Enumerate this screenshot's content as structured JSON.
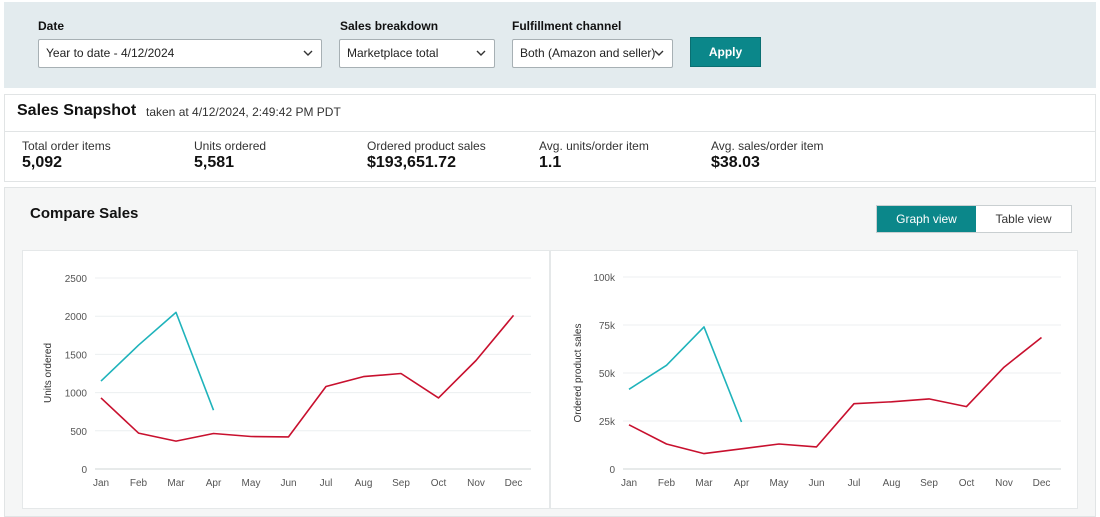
{
  "filters": {
    "date_label": "Date",
    "date_value": "Year to date - 4/12/2024",
    "breakdown_label": "Sales breakdown",
    "breakdown_value": "Marketplace total",
    "channel_label": "Fulfillment channel",
    "channel_value": "Both (Amazon and seller)",
    "apply_label": "Apply"
  },
  "snapshot": {
    "title": "Sales Snapshot",
    "taken_at": "taken at 4/12/2024, 2:49:42 PM PDT",
    "metrics": [
      {
        "label": "Total order items",
        "value": "5,092"
      },
      {
        "label": "Units ordered",
        "value": "5,581"
      },
      {
        "label": "Ordered product sales",
        "value": "$193,651.72"
      },
      {
        "label": "Avg. units/order item",
        "value": "1.1"
      },
      {
        "label": "Avg. sales/order item",
        "value": "$38.03"
      }
    ]
  },
  "compare": {
    "title": "Compare Sales",
    "graph_view_label": "Graph view",
    "table_view_label": "Table view"
  },
  "colors": {
    "accent": "#0b878a",
    "current_year": "#1fb3bb",
    "last_year": "#c8102e"
  },
  "chart_data": [
    {
      "type": "line",
      "ylabel": "Units ordered",
      "categories": [
        "Jan",
        "Feb",
        "Mar",
        "Apr",
        "May",
        "Jun",
        "Jul",
        "Aug",
        "Sep",
        "Oct",
        "Nov",
        "Dec"
      ],
      "yticks": [
        "0",
        "500",
        "1000",
        "1500",
        "2000",
        "2500"
      ],
      "ylim": [
        0,
        2500
      ],
      "grid": true,
      "series": [
        {
          "values": [
            1150,
            1620,
            2050,
            770,
            null,
            null,
            null,
            null,
            null,
            null,
            null,
            null
          ]
        },
        {
          "values": [
            930,
            470,
            365,
            465,
            425,
            420,
            1080,
            1210,
            1250,
            930,
            1420,
            2010
          ]
        }
      ]
    },
    {
      "type": "line",
      "ylabel": "Ordered product sales",
      "categories": [
        "Jan",
        "Feb",
        "Mar",
        "Apr",
        "May",
        "Jun",
        "Jul",
        "Aug",
        "Sep",
        "Oct",
        "Nov",
        "Dec"
      ],
      "yticks": [
        "0",
        "25k",
        "50k",
        "75k",
        "100k"
      ],
      "ylim": [
        0,
        100000
      ],
      "grid": true,
      "series": [
        {
          "values": [
            41500,
            54000,
            74000,
            24500,
            null,
            null,
            null,
            null,
            null,
            null,
            null,
            null
          ]
        },
        {
          "values": [
            23000,
            13000,
            8000,
            10500,
            13000,
            11500,
            34000,
            35000,
            36500,
            32500,
            53000,
            68500
          ]
        }
      ]
    }
  ]
}
